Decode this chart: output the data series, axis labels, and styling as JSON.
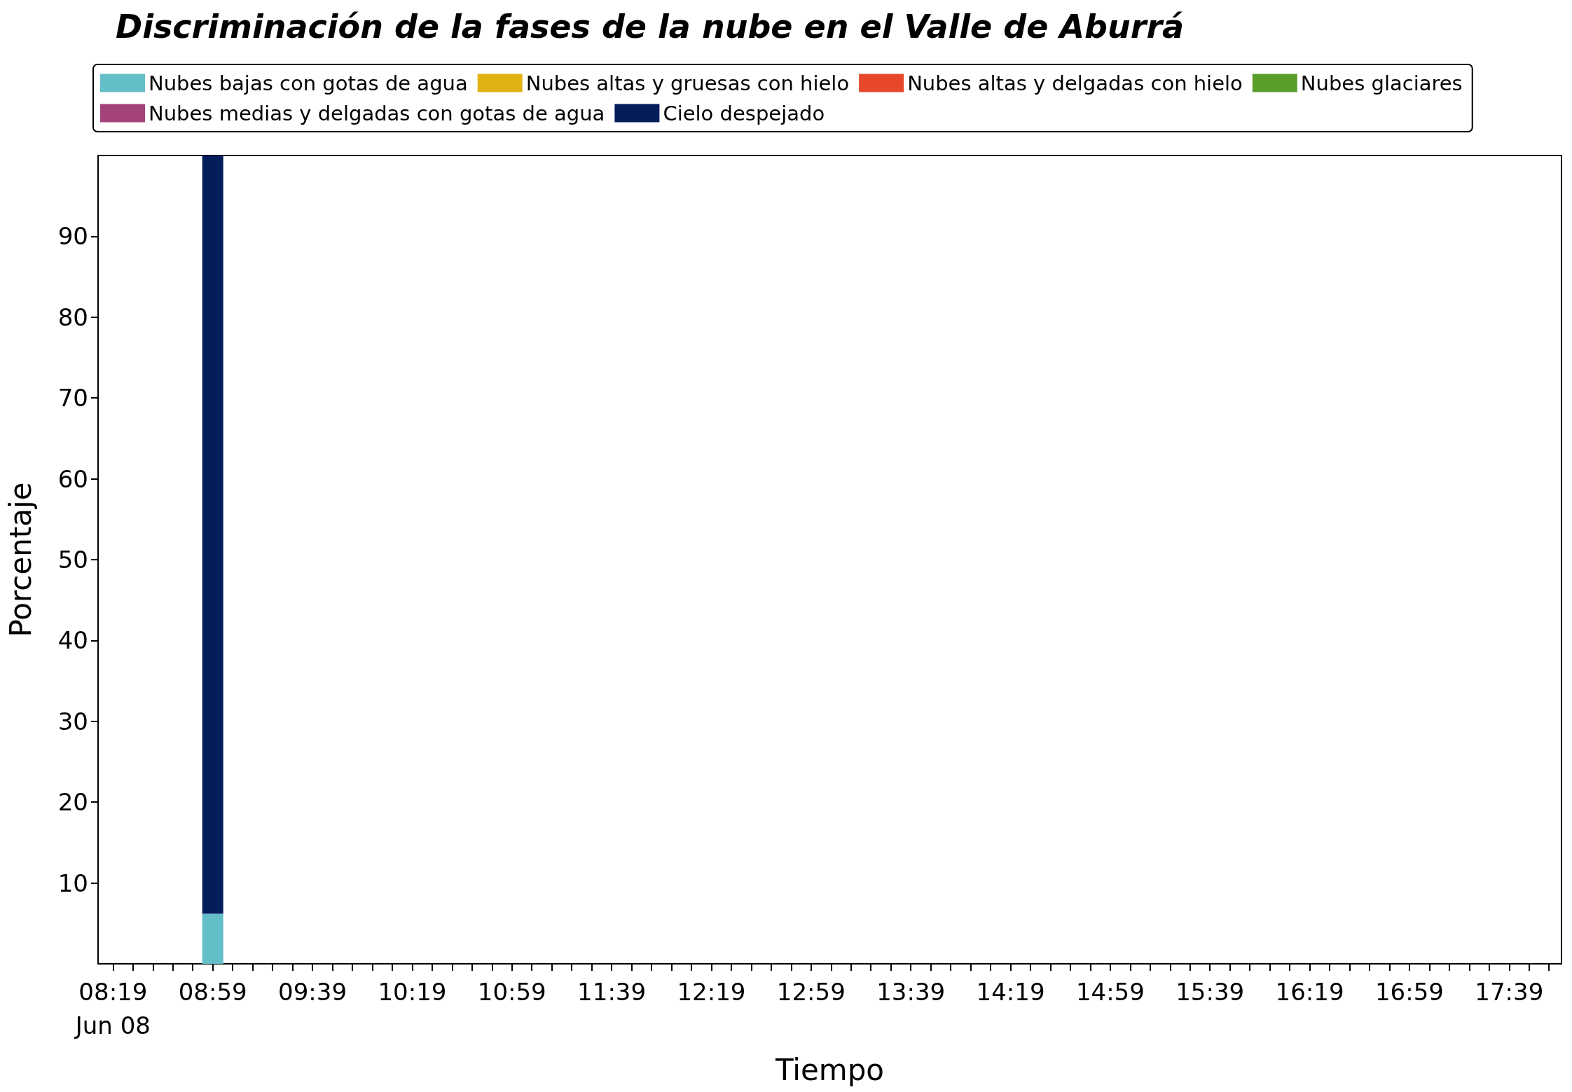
{
  "chart_data": {
    "type": "bar",
    "title": "Discriminación de la fases de la nube en el Valle de Aburrá",
    "xlabel": "Tiempo",
    "ylabel": "Porcentaje",
    "x": [
      "--06-08T08:59"
    ],
    "stacked": true,
    "series": [
      {
        "name": "Nubes bajas con gotas de agua",
        "color": "#64bec8",
        "values": [
          6.2
        ]
      },
      {
        "name": "Nubes glaciares",
        "color": "#5a9e2a",
        "values": [
          0
        ]
      },
      {
        "name": "Nubes altas y gruesas con hielo",
        "color": "#e2b212",
        "values": [
          0
        ]
      },
      {
        "name": "Nubes medias y delgadas con gotas de agua",
        "color": "#a4437a",
        "values": [
          0
        ]
      },
      {
        "name": "Nubes altas y delgadas con hielo",
        "color": "#e8482a",
        "values": [
          0
        ]
      },
      {
        "name": "Cielo despejado",
        "color": "#041e5c",
        "values": [
          93.8
        ]
      }
    ],
    "ylim": [
      0,
      100
    ],
    "yticks": [
      10,
      20,
      30,
      40,
      50,
      60,
      70,
      80,
      90
    ],
    "xlim": [
      "--06-08T08:13",
      "--06-08T18:00"
    ],
    "xticks": [
      {
        "value": "--06-08T08:19",
        "label": "08:19\nJun 08"
      },
      {
        "value": "--06-08T08:27",
        "label": null
      },
      {
        "value": "--06-08T08:35",
        "label": null
      },
      {
        "value": "--06-08T08:43",
        "label": null
      },
      {
        "value": "--06-08T08:51",
        "label": null
      },
      {
        "value": "--06-08T08:59",
        "label": "08:59"
      },
      {
        "value": "--06-08T09:07",
        "label": null
      },
      {
        "value": "--06-08T09:15",
        "label": null
      },
      {
        "value": "--06-08T09:23",
        "label": null
      },
      {
        "value": "--06-08T09:31",
        "label": null
      },
      {
        "value": "--06-08T09:39",
        "label": "09:39"
      },
      {
        "value": "--06-08T09:47",
        "label": null
      },
      {
        "value": "--06-08T09:55",
        "label": null
      },
      {
        "value": "--06-08T10:03",
        "label": null
      },
      {
        "value": "--06-08T10:11",
        "label": null
      },
      {
        "value": "--06-08T10:19",
        "label": "10:19"
      },
      {
        "value": "--06-08T10:27",
        "label": null
      },
      {
        "value": "--06-08T10:35",
        "label": null
      },
      {
        "value": "--06-08T10:43",
        "label": null
      },
      {
        "value": "--06-08T10:51",
        "label": null
      },
      {
        "value": "--06-08T10:59",
        "label": "10:59"
      },
      {
        "value": "--06-08T11:07",
        "label": null
      },
      {
        "value": "--06-08T11:15",
        "label": null
      },
      {
        "value": "--06-08T11:23",
        "label": null
      },
      {
        "value": "--06-08T11:31",
        "label": null
      },
      {
        "value": "--06-08T11:39",
        "label": "11:39"
      },
      {
        "value": "--06-08T11:47",
        "label": null
      },
      {
        "value": "--06-08T11:55",
        "label": null
      },
      {
        "value": "--06-08T12:03",
        "label": null
      },
      {
        "value": "--06-08T12:11",
        "label": null
      },
      {
        "value": "--06-08T12:19",
        "label": "12:19"
      },
      {
        "value": "--06-08T12:27",
        "label": null
      },
      {
        "value": "--06-08T12:35",
        "label": null
      },
      {
        "value": "--06-08T12:43",
        "label": null
      },
      {
        "value": "--06-08T12:51",
        "label": null
      },
      {
        "value": "--06-08T12:59",
        "label": "12:59"
      },
      {
        "value": "--06-08T13:07",
        "label": null
      },
      {
        "value": "--06-08T13:15",
        "label": null
      },
      {
        "value": "--06-08T13:23",
        "label": null
      },
      {
        "value": "--06-08T13:31",
        "label": null
      },
      {
        "value": "--06-08T13:39",
        "label": "13:39"
      },
      {
        "value": "--06-08T13:47",
        "label": null
      },
      {
        "value": "--06-08T13:55",
        "label": null
      },
      {
        "value": "--06-08T14:03",
        "label": null
      },
      {
        "value": "--06-08T14:11",
        "label": null
      },
      {
        "value": "--06-08T14:19",
        "label": "14:19"
      },
      {
        "value": "--06-08T14:27",
        "label": null
      },
      {
        "value": "--06-08T14:35",
        "label": null
      },
      {
        "value": "--06-08T14:43",
        "label": null
      },
      {
        "value": "--06-08T14:51",
        "label": null
      },
      {
        "value": "--06-08T14:59",
        "label": "14:59"
      },
      {
        "value": "--06-08T15:07",
        "label": null
      },
      {
        "value": "--06-08T15:15",
        "label": null
      },
      {
        "value": "--06-08T15:23",
        "label": null
      },
      {
        "value": "--06-08T15:31",
        "label": null
      },
      {
        "value": "--06-08T15:39",
        "label": "15:39"
      },
      {
        "value": "--06-08T15:47",
        "label": null
      },
      {
        "value": "--06-08T15:55",
        "label": null
      },
      {
        "value": "--06-08T16:03",
        "label": null
      },
      {
        "value": "--06-08T16:11",
        "label": null
      },
      {
        "value": "--06-08T16:19",
        "label": "16:19"
      },
      {
        "value": "--06-08T16:27",
        "label": null
      },
      {
        "value": "--06-08T16:35",
        "label": null
      },
      {
        "value": "--06-08T16:43",
        "label": null
      },
      {
        "value": "--06-08T16:51",
        "label": null
      },
      {
        "value": "--06-08T16:59",
        "label": "16:59"
      },
      {
        "value": "--06-08T17:07",
        "label": null
      },
      {
        "value": "--06-08T17:15",
        "label": null
      },
      {
        "value": "--06-08T17:23",
        "label": null
      },
      {
        "value": "--06-08T17:31",
        "label": null
      },
      {
        "value": "--06-08T17:39",
        "label": "17:39"
      },
      {
        "value": "--06-08T17:47",
        "label": null
      },
      {
        "value": "--06-08T17:55",
        "label": null
      }
    ],
    "grid": false,
    "legend": "top"
  }
}
